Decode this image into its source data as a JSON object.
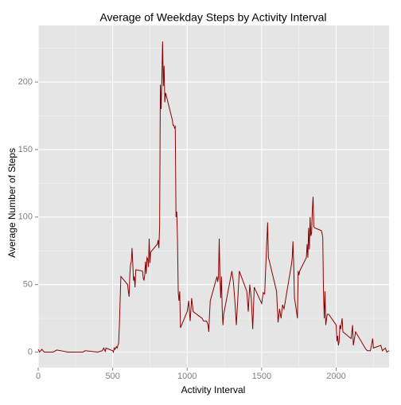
{
  "chart_data": {
    "type": "line",
    "title": "Average of Weekday Steps by Activity Interval",
    "xlabel": "Activity Interval",
    "ylabel": "Average Number of Steps",
    "x": [
      0,
      10,
      25,
      40,
      100,
      125,
      200,
      250,
      300,
      315,
      400,
      430,
      440,
      450,
      455,
      500,
      505,
      510,
      515,
      525,
      530,
      535,
      540,
      545,
      550,
      555,
      600,
      605,
      610,
      615,
      620,
      625,
      630,
      635,
      640,
      645,
      650,
      655,
      700,
      705,
      710,
      715,
      720,
      725,
      730,
      735,
      740,
      745,
      750,
      755,
      800,
      805,
      810,
      815,
      820,
      825,
      830,
      835,
      840,
      845,
      850,
      855,
      900,
      905,
      910,
      915,
      920,
      925,
      930,
      935,
      940,
      945,
      950,
      955,
      1000,
      1010,
      1015,
      1020,
      1030,
      1040,
      1100,
      1110,
      1130,
      1140,
      1145,
      1150,
      1155,
      1200,
      1205,
      1210,
      1215,
      1220,
      1225,
      1230,
      1235,
      1240,
      1245,
      1300,
      1310,
      1320,
      1330,
      1340,
      1350,
      1400,
      1410,
      1420,
      1430,
      1440,
      1450,
      1500,
      1510,
      1520,
      1530,
      1540,
      1545,
      1550,
      1600,
      1610,
      1620,
      1630,
      1640,
      1650,
      1700,
      1705,
      1710,
      1715,
      1720,
      1730,
      1740,
      1745,
      1750,
      1755,
      1800,
      1805,
      1810,
      1815,
      1820,
      1825,
      1830,
      1835,
      1840,
      1845,
      1850,
      1855,
      1900,
      1905,
      1910,
      1915,
      1920,
      1925,
      1930,
      1940,
      1950,
      2000,
      2005,
      2010,
      2015,
      2020,
      2025,
      2030,
      2040,
      2045,
      2100,
      2110,
      2115,
      2130,
      2200,
      2210,
      2230,
      2245,
      2250,
      2300,
      2310,
      2320,
      2330,
      2340,
      2355
    ],
    "series": [
      {
        "name": "steps",
        "color": "#8b0000",
        "values": [
          2,
          0,
          2,
          0,
          0,
          1.5,
          0,
          0,
          0,
          1,
          0,
          1,
          3,
          0.5,
          3,
          1,
          0,
          3,
          2,
          4,
          3,
          5,
          6.5,
          20,
          38,
          56,
          50,
          45,
          41,
          57,
          65,
          67,
          77,
          65,
          53,
          56,
          48,
          61,
          60,
          55,
          53,
          57,
          67,
          58,
          70,
          69,
          63,
          84,
          66,
          74,
          80,
          83,
          77,
          93,
          198,
          180,
          203,
          230,
          197,
          212,
          185,
          192,
          172,
          168,
          168,
          166,
          167,
          100,
          104,
          83,
          44,
          38,
          45,
          18,
          30,
          38,
          30,
          23,
          40,
          30,
          25,
          23,
          23,
          20,
          15,
          28,
          38,
          56,
          52,
          56,
          84,
          56,
          40,
          56,
          32,
          20,
          28,
          60,
          52,
          38,
          20,
          40,
          60,
          45,
          30,
          50,
          40,
          17,
          48,
          36,
          44,
          43,
          70,
          96,
          70,
          68,
          45,
          22,
          32,
          25,
          35,
          32,
          65,
          70,
          82,
          65,
          40,
          33,
          25,
          60,
          57,
          60,
          70,
          80,
          70,
          92,
          76,
          100,
          86,
          88,
          105,
          115,
          93,
          92,
          90,
          88,
          85,
          44,
          25,
          45,
          20,
          28,
          28,
          20,
          8,
          12,
          5,
          8,
          20,
          17,
          25,
          15,
          10,
          20,
          5,
          15,
          2,
          1,
          1,
          10,
          3,
          5,
          1,
          2,
          3,
          0,
          1
        ]
      }
    ],
    "xlim": [
      0,
      2355
    ],
    "ylim": [
      -11.5,
      241.9
    ],
    "xticks": [
      0,
      500,
      1000,
      1500,
      2000
    ],
    "yticks": [
      0,
      50,
      100,
      150,
      200
    ],
    "xminor": [
      250,
      750,
      1250,
      1750,
      2250
    ],
    "yminor": [
      25,
      75,
      125,
      175,
      225
    ],
    "grid": true
  }
}
